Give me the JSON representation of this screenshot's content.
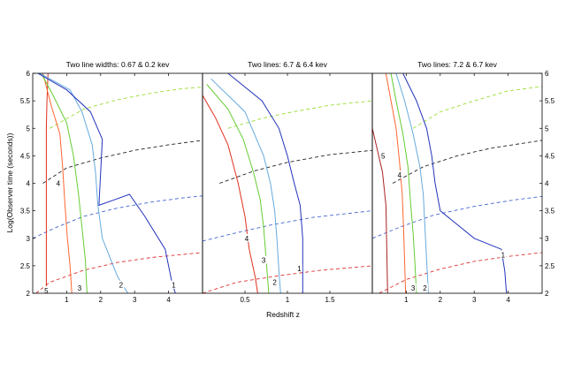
{
  "figure": {
    "ylabel": "Log(Observer time (seconds))",
    "xlabel": "Redshift z"
  },
  "chart_data": [
    {
      "type": "line",
      "title": "Two line widths: 0.67 & 0.2 kev",
      "xlim": [
        0,
        5
      ],
      "ylim": [
        2,
        6
      ],
      "xticks": [
        "1",
        "2",
        "3",
        "4"
      ],
      "yticks": [
        "2",
        "2.5",
        "3",
        "3.5",
        "4",
        "4.5",
        "5",
        "5.5",
        "6"
      ],
      "right_yticks": [],
      "contours": [
        {
          "level": "5",
          "color": "#e0301e",
          "points": [
            [
              0.45,
              6.0
            ],
            [
              0.42,
              5.5
            ],
            [
              0.4,
              5.0
            ],
            [
              0.4,
              4.0
            ],
            [
              0.4,
              3.0
            ],
            [
              0.4,
              2.0
            ]
          ],
          "label_at": [
            0.4,
            2.05
          ]
        },
        {
          "level": "4",
          "color": "#ff6633",
          "points": [
            [
              0.3,
              6.0
            ],
            [
              0.55,
              5.4
            ],
            [
              0.8,
              4.9
            ],
            [
              0.88,
              4.3
            ],
            [
              0.95,
              3.6
            ],
            [
              1.02,
              3.0
            ],
            [
              1.1,
              2.5
            ],
            [
              1.15,
              2.0
            ]
          ],
          "label_at": [
            0.75,
            4.0
          ]
        },
        {
          "level": "3",
          "color": "#66cc33",
          "points": [
            [
              0.25,
              6.0
            ],
            [
              0.6,
              5.6
            ],
            [
              1.0,
              5.1
            ],
            [
              1.2,
              4.5
            ],
            [
              1.35,
              3.8
            ],
            [
              1.45,
              3.2
            ],
            [
              1.55,
              2.6
            ],
            [
              1.6,
              2.0
            ]
          ],
          "label_at": [
            1.38,
            2.1
          ]
        },
        {
          "level": "2",
          "color": "#66aadd",
          "points": [
            [
              0.2,
              6.0
            ],
            [
              1.1,
              5.7
            ],
            [
              1.45,
              5.3
            ],
            [
              1.75,
              4.7
            ],
            [
              1.85,
              4.2
            ],
            [
              1.92,
              3.6
            ],
            [
              2.05,
              3.0
            ],
            [
              2.5,
              2.3
            ],
            [
              2.8,
              2.0
            ]
          ],
          "label_at": [
            2.6,
            2.15
          ]
        },
        {
          "level": "1",
          "color": "#2233bb",
          "points": [
            [
              0.15,
              6.0
            ],
            [
              1.0,
              5.7
            ],
            [
              1.7,
              5.3
            ],
            [
              2.05,
              4.8
            ],
            [
              2.0,
              4.2
            ],
            [
              1.95,
              3.6
            ],
            [
              2.85,
              3.8
            ],
            [
              3.3,
              3.4
            ],
            [
              3.9,
              2.8
            ],
            [
              4.1,
              2.2
            ],
            [
              4.2,
              2.0
            ]
          ],
          "label_at": [
            4.15,
            2.15
          ]
        }
      ],
      "dashed": [
        {
          "color": "#99dd33",
          "points": [
            [
              0.5,
              5.0
            ],
            [
              1.5,
              5.35
            ],
            [
              2.5,
              5.52
            ],
            [
              3.5,
              5.64
            ],
            [
              4.4,
              5.72
            ],
            [
              5,
              5.75
            ]
          ]
        },
        {
          "color": "#222222",
          "points": [
            [
              0.3,
              4.0
            ],
            [
              1.0,
              4.28
            ],
            [
              2.0,
              4.46
            ],
            [
              3.0,
              4.6
            ],
            [
              4.0,
              4.7
            ],
            [
              5,
              4.78
            ]
          ]
        },
        {
          "color": "#4466cc",
          "points": [
            [
              0,
              3.0
            ],
            [
              0.7,
              3.2
            ],
            [
              1.5,
              3.4
            ],
            [
              2.5,
              3.55
            ],
            [
              3.5,
              3.66
            ],
            [
              4.5,
              3.74
            ],
            [
              5,
              3.77
            ]
          ]
        },
        {
          "color": "#dd3333",
          "points": [
            [
              0.1,
              2.0
            ],
            [
              0.5,
              2.2
            ],
            [
              1.5,
              2.42
            ],
            [
              2.5,
              2.56
            ],
            [
              3.5,
              2.65
            ],
            [
              5,
              2.74
            ]
          ]
        }
      ]
    },
    {
      "type": "line",
      "title": "Two lines: 6.7 & 6.4 kev",
      "xlim": [
        0,
        2
      ],
      "ylim": [
        2,
        6
      ],
      "xticks": [
        "0.5",
        "1",
        "1.5"
      ],
      "yticks": [],
      "right_yticks": [],
      "contours": [
        {
          "level": "4",
          "color": "#e0301e",
          "points": [
            [
              0.0,
              5.6
            ],
            [
              0.15,
              5.2
            ],
            [
              0.3,
              4.7
            ],
            [
              0.42,
              4.0
            ],
            [
              0.5,
              3.4
            ],
            [
              0.55,
              2.8
            ],
            [
              0.62,
              2.3
            ],
            [
              0.65,
              2.0
            ]
          ],
          "label_at": [
            0.52,
            3.0
          ]
        },
        {
          "level": "3",
          "color": "#66cc33",
          "points": [
            [
              0.05,
              5.8
            ],
            [
              0.3,
              5.35
            ],
            [
              0.48,
              4.8
            ],
            [
              0.6,
              4.2
            ],
            [
              0.68,
              3.7
            ],
            [
              0.72,
              3.2
            ],
            [
              0.75,
              2.6
            ],
            [
              0.78,
              2.0
            ]
          ],
          "label_at": [
            0.72,
            2.6
          ]
        },
        {
          "level": "2",
          "color": "#66aadd",
          "points": [
            [
              0.1,
              5.9
            ],
            [
              0.5,
              5.3
            ],
            [
              0.72,
              4.5
            ],
            [
              0.8,
              4.0
            ],
            [
              0.85,
              3.5
            ],
            [
              0.88,
              2.9
            ],
            [
              0.9,
              2.4
            ],
            [
              0.92,
              2.0
            ]
          ],
          "label_at": [
            0.85,
            2.2
          ]
        },
        {
          "level": "1",
          "color": "#2233bb",
          "points": [
            [
              0.3,
              6.0
            ],
            [
              0.7,
              5.5
            ],
            [
              0.9,
              5.0
            ],
            [
              1.0,
              4.5
            ],
            [
              1.08,
              4.0
            ],
            [
              1.15,
              3.6
            ],
            [
              1.18,
              3.0
            ],
            [
              1.18,
              2.5
            ],
            [
              1.18,
              2.0
            ]
          ],
          "label_at": [
            1.14,
            2.45
          ]
        }
      ],
      "dashed": [
        {
          "color": "#99dd33",
          "points": [
            [
              0.3,
              5.0
            ],
            [
              0.7,
              5.18
            ],
            [
              1.0,
              5.28
            ],
            [
              1.5,
              5.42
            ],
            [
              2,
              5.5
            ]
          ]
        },
        {
          "color": "#222222",
          "points": [
            [
              0.2,
              4.0
            ],
            [
              0.6,
              4.22
            ],
            [
              1.0,
              4.38
            ],
            [
              1.5,
              4.52
            ],
            [
              2,
              4.6
            ]
          ]
        },
        {
          "color": "#4466cc",
          "points": [
            [
              0,
              2.95
            ],
            [
              0.4,
              3.1
            ],
            [
              0.8,
              3.24
            ],
            [
              1.3,
              3.38
            ],
            [
              2,
              3.5
            ]
          ]
        },
        {
          "color": "#dd3333",
          "points": [
            [
              0,
              2.0
            ],
            [
              0.4,
              2.2
            ],
            [
              0.9,
              2.32
            ],
            [
              1.4,
              2.42
            ],
            [
              2,
              2.5
            ]
          ]
        }
      ]
    },
    {
      "type": "line",
      "title": "Two lines: 7.2 & 6.7 kev",
      "xlim": [
        0,
        5
      ],
      "ylim": [
        2,
        6
      ],
      "xticks": [
        "1",
        "2",
        "3",
        "4"
      ],
      "yticks": [],
      "right_yticks": [
        "2",
        "2.5",
        "3",
        "3.5",
        "4",
        "4.5",
        "5",
        "5.5",
        "6"
      ],
      "contours": [
        {
          "level": "5",
          "color": "#aa2222",
          "points": [
            [
              0.0,
              5.0
            ],
            [
              0.15,
              4.6
            ],
            [
              0.3,
              4.2
            ],
            [
              0.4,
              3.6
            ],
            [
              0.42,
              3.0
            ],
            [
              0.45,
              2.0
            ]
          ],
          "label_at": [
            0.32,
            4.5
          ]
        },
        {
          "level": "4",
          "color": "#ff6633",
          "points": [
            [
              0.4,
              6.0
            ],
            [
              0.55,
              5.5
            ],
            [
              0.7,
              5.0
            ],
            [
              0.8,
              4.4
            ],
            [
              0.88,
              3.8
            ],
            [
              0.92,
              3.2
            ],
            [
              0.95,
              2.6
            ],
            [
              0.98,
              2.0
            ]
          ],
          "label_at": [
            0.8,
            4.15
          ]
        },
        {
          "level": "3",
          "color": "#66cc33",
          "points": [
            [
              0.55,
              6.0
            ],
            [
              0.7,
              5.5
            ],
            [
              0.9,
              4.9
            ],
            [
              1.05,
              4.3
            ],
            [
              1.12,
              3.7
            ],
            [
              1.2,
              3.1
            ],
            [
              1.25,
              2.6
            ],
            [
              1.3,
              2.0
            ]
          ],
          "label_at": [
            1.2,
            2.1
          ]
        },
        {
          "level": "2",
          "color": "#66aadd",
          "points": [
            [
              0.7,
              6.0
            ],
            [
              0.95,
              5.5
            ],
            [
              1.2,
              4.9
            ],
            [
              1.4,
              4.3
            ],
            [
              1.5,
              3.8
            ],
            [
              1.55,
              3.2
            ],
            [
              1.6,
              2.6
            ],
            [
              1.65,
              2.0
            ]
          ],
          "label_at": [
            1.55,
            2.1
          ]
        },
        {
          "level": "1",
          "color": "#2233bb",
          "points": [
            [
              0.9,
              6.0
            ],
            [
              1.3,
              5.5
            ],
            [
              1.6,
              5.0
            ],
            [
              1.75,
              4.5
            ],
            [
              1.85,
              4.0
            ],
            [
              2.0,
              3.5
            ],
            [
              3.0,
              3.0
            ],
            [
              3.8,
              2.8
            ],
            [
              3.9,
              2.4
            ],
            [
              3.95,
              2.0
            ]
          ],
          "label_at": [
            3.85,
            2.7
          ]
        }
      ],
      "dashed": [
        {
          "color": "#99dd33",
          "points": [
            [
              1.2,
              5.0
            ],
            [
              2.0,
              5.3
            ],
            [
              3.0,
              5.5
            ],
            [
              4.0,
              5.68
            ],
            [
              5,
              5.76
            ]
          ]
        },
        {
          "color": "#222222",
          "points": [
            [
              0.6,
              4.0
            ],
            [
              1.5,
              4.3
            ],
            [
              2.5,
              4.5
            ],
            [
              3.5,
              4.64
            ],
            [
              5,
              4.78
            ]
          ]
        },
        {
          "color": "#4466cc",
          "points": [
            [
              0,
              3.0
            ],
            [
              0.8,
              3.2
            ],
            [
              1.8,
              3.42
            ],
            [
              3.0,
              3.58
            ],
            [
              4.2,
              3.7
            ],
            [
              5,
              3.76
            ]
          ]
        },
        {
          "color": "#dd3333",
          "points": [
            [
              0.2,
              2.0
            ],
            [
              1.0,
              2.25
            ],
            [
              2.0,
              2.44
            ],
            [
              3.0,
              2.58
            ],
            [
              4.0,
              2.67
            ],
            [
              5,
              2.74
            ]
          ]
        }
      ]
    }
  ]
}
